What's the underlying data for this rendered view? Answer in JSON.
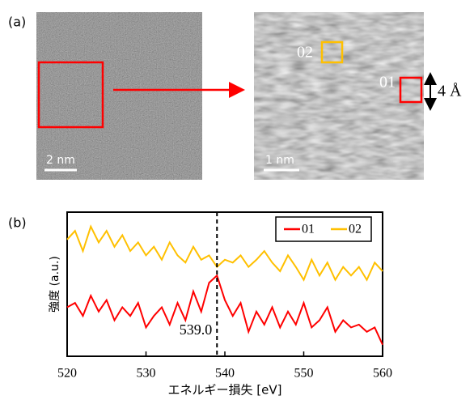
{
  "panel_a": {
    "label": "(a)",
    "left_scale": "2 nm",
    "right_scale": "1 nm",
    "region_02": "02",
    "region_01": "01",
    "thickness": "4 Å"
  },
  "chart_data": {
    "type": "line",
    "panel_label": "(b)",
    "x_label": "エネルギー損失 [eV]",
    "y_label": "強度 (a.u.)",
    "x": [
      520,
      521,
      522,
      523,
      524,
      525,
      526,
      527,
      528,
      529,
      530,
      531,
      532,
      533,
      534,
      535,
      536,
      537,
      538,
      539,
      540,
      541,
      542,
      543,
      544,
      545,
      546,
      547,
      548,
      549,
      550,
      551,
      552,
      553,
      554,
      555,
      556,
      557,
      558,
      559,
      560
    ],
    "series": [
      {
        "name": "01",
        "color": "#ff0000",
        "values": [
          34,
          37,
          28,
          42,
          31,
          39,
          25,
          34,
          28,
          37,
          20,
          28,
          34,
          22,
          37,
          25,
          45,
          31,
          51,
          56,
          39,
          28,
          37,
          17,
          31,
          22,
          34,
          20,
          31,
          22,
          37,
          20,
          25,
          34,
          17,
          25,
          20,
          22,
          17,
          20,
          8
        ]
      },
      {
        "name": "02",
        "color": "#ffc000",
        "values": [
          81,
          87,
          73,
          90,
          79,
          87,
          76,
          84,
          73,
          79,
          70,
          76,
          67,
          79,
          70,
          65,
          76,
          67,
          70,
          62,
          67,
          65,
          70,
          62,
          67,
          73,
          65,
          59,
          70,
          62,
          53,
          67,
          56,
          65,
          53,
          62,
          56,
          62,
          53,
          65,
          59
        ]
      }
    ],
    "xlim": [
      520,
      560
    ],
    "xticks": [
      520,
      530,
      540,
      550,
      560
    ],
    "ylim": [
      0,
      100
    ],
    "marker": {
      "value": 539,
      "label": "539.0"
    },
    "legend": "top-right"
  }
}
